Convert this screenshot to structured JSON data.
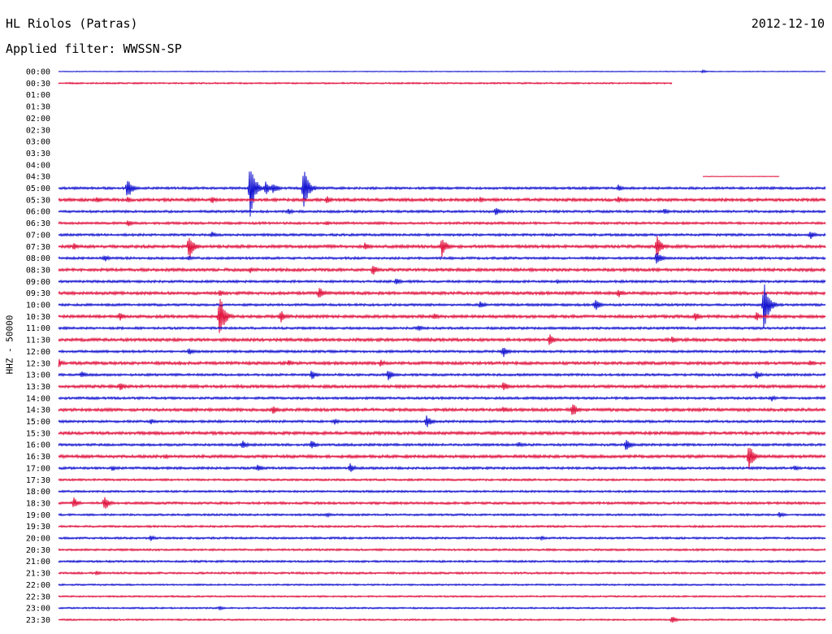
{
  "header": {
    "station": "HL Riolos (Patras)",
    "date": "2012-12-10",
    "filter": "Applied filter: WWSSN-SP"
  },
  "chart_data": {
    "type": "line",
    "title": "HL Riolos (Patras)",
    "subtitle": "Applied filter: WWSSN-SP",
    "ylabel": "HHZ - 50000",
    "colors": {
      "even_row": "#1010d0",
      "odd_row": "#e0103c"
    },
    "rows": [
      {
        "label": "00:00",
        "start": 0,
        "end": 1,
        "noise": 0.4,
        "events": [
          {
            "x": 0.84,
            "a": 2
          }
        ]
      },
      {
        "label": "00:30",
        "start": 0,
        "end": 0.8,
        "noise": 0.8,
        "events": []
      },
      {
        "label": "01:00",
        "start": 0,
        "end": 0,
        "noise": 0,
        "events": []
      },
      {
        "label": "01:30",
        "start": 0,
        "end": 0,
        "noise": 0,
        "events": []
      },
      {
        "label": "02:00",
        "start": 0,
        "end": 0,
        "noise": 0,
        "events": []
      },
      {
        "label": "02:30",
        "start": 0,
        "end": 0,
        "noise": 0,
        "events": []
      },
      {
        "label": "03:00",
        "start": 0,
        "end": 0,
        "noise": 0,
        "events": []
      },
      {
        "label": "03:30",
        "start": 0,
        "end": 0,
        "noise": 0,
        "events": []
      },
      {
        "label": "04:00",
        "start": 0,
        "end": 0,
        "noise": 0,
        "events": []
      },
      {
        "label": "04:30",
        "start": 0.84,
        "end": 0.94,
        "noise": 0.3,
        "events": []
      },
      {
        "label": "05:00",
        "start": 0,
        "end": 1,
        "noise": 1.2,
        "events": [
          {
            "x": 0.09,
            "a": 14
          },
          {
            "x": 0.25,
            "a": 37
          },
          {
            "x": 0.27,
            "a": 10
          },
          {
            "x": 0.28,
            "a": 8
          },
          {
            "x": 0.32,
            "a": 29
          },
          {
            "x": 0.73,
            "a": 5
          }
        ]
      },
      {
        "label": "05:30",
        "start": 0,
        "end": 1,
        "noise": 1.5,
        "events": [
          {
            "x": 0.05,
            "a": 5
          },
          {
            "x": 0.09,
            "a": 4
          },
          {
            "x": 0.2,
            "a": 5
          },
          {
            "x": 0.35,
            "a": 5
          },
          {
            "x": 0.55,
            "a": 4
          },
          {
            "x": 0.73,
            "a": 5
          }
        ]
      },
      {
        "label": "06:00",
        "start": 0,
        "end": 1,
        "noise": 1.2,
        "events": [
          {
            "x": 0.3,
            "a": 4
          },
          {
            "x": 0.57,
            "a": 6
          },
          {
            "x": 0.79,
            "a": 4
          }
        ]
      },
      {
        "label": "06:30",
        "start": 0,
        "end": 1,
        "noise": 1.2,
        "events": [
          {
            "x": 0.09,
            "a": 5
          },
          {
            "x": 0.35,
            "a": 3
          }
        ]
      },
      {
        "label": "07:00",
        "start": 0,
        "end": 1,
        "noise": 1.2,
        "events": [
          {
            "x": 0.2,
            "a": 4
          },
          {
            "x": 0.98,
            "a": 6
          }
        ]
      },
      {
        "label": "07:30",
        "start": 0,
        "end": 1,
        "noise": 1.5,
        "events": [
          {
            "x": 0.02,
            "a": 5
          },
          {
            "x": 0.17,
            "a": 18
          },
          {
            "x": 0.4,
            "a": 6
          },
          {
            "x": 0.5,
            "a": 14
          },
          {
            "x": 0.78,
            "a": 16
          }
        ]
      },
      {
        "label": "08:00",
        "start": 0,
        "end": 1,
        "noise": 1.2,
        "events": [
          {
            "x": 0.06,
            "a": 5
          },
          {
            "x": 0.17,
            "a": 3
          },
          {
            "x": 0.78,
            "a": 10
          }
        ]
      },
      {
        "label": "08:30",
        "start": 0,
        "end": 1,
        "noise": 1.5,
        "events": [
          {
            "x": 0.25,
            "a": 4
          },
          {
            "x": 0.41,
            "a": 8
          }
        ]
      },
      {
        "label": "09:00",
        "start": 0,
        "end": 1,
        "noise": 1.2,
        "events": [
          {
            "x": 0.44,
            "a": 5
          },
          {
            "x": 0.65,
            "a": 3
          }
        ]
      },
      {
        "label": "09:30",
        "start": 0,
        "end": 1,
        "noise": 1.5,
        "events": [
          {
            "x": 0.21,
            "a": 5
          },
          {
            "x": 0.34,
            "a": 9
          },
          {
            "x": 0.73,
            "a": 6
          }
        ]
      },
      {
        "label": "10:00",
        "start": 0,
        "end": 1,
        "noise": 1.2,
        "events": [
          {
            "x": 0.55,
            "a": 6
          },
          {
            "x": 0.7,
            "a": 8
          },
          {
            "x": 0.92,
            "a": 36
          }
        ]
      },
      {
        "label": "10:30",
        "start": 0,
        "end": 1,
        "noise": 1.5,
        "events": [
          {
            "x": 0.08,
            "a": 6
          },
          {
            "x": 0.21,
            "a": 30
          },
          {
            "x": 0.29,
            "a": 8
          },
          {
            "x": 0.49,
            "a": 5
          },
          {
            "x": 0.83,
            "a": 7
          },
          {
            "x": 0.91,
            "a": 6
          }
        ]
      },
      {
        "label": "11:00",
        "start": 0,
        "end": 1,
        "noise": 1.2,
        "events": [
          {
            "x": 0.47,
            "a": 4
          }
        ]
      },
      {
        "label": "11:30",
        "start": 0,
        "end": 1,
        "noise": 1.5,
        "events": [
          {
            "x": 0.64,
            "a": 8
          },
          {
            "x": 0.8,
            "a": 5
          }
        ]
      },
      {
        "label": "12:00",
        "start": 0,
        "end": 1,
        "noise": 1.2,
        "events": [
          {
            "x": 0.17,
            "a": 5
          },
          {
            "x": 0.58,
            "a": 8
          }
        ]
      },
      {
        "label": "12:30",
        "start": 0,
        "end": 1,
        "noise": 1.5,
        "events": [
          {
            "x": 0,
            "a": 6
          },
          {
            "x": 0.3,
            "a": 5
          },
          {
            "x": 0.42,
            "a": 5
          },
          {
            "x": 0.98,
            "a": 5
          }
        ]
      },
      {
        "label": "13:00",
        "start": 0,
        "end": 1,
        "noise": 1.2,
        "events": [
          {
            "x": 0.03,
            "a": 5
          },
          {
            "x": 0.33,
            "a": 7
          },
          {
            "x": 0.43,
            "a": 7
          },
          {
            "x": 0.91,
            "a": 6
          }
        ]
      },
      {
        "label": "13:30",
        "start": 0,
        "end": 1,
        "noise": 1.5,
        "events": [
          {
            "x": 0.08,
            "a": 6
          },
          {
            "x": 0.58,
            "a": 7
          }
        ]
      },
      {
        "label": "14:00",
        "start": 0,
        "end": 1,
        "noise": 1.2,
        "events": [
          {
            "x": 0.93,
            "a": 4
          }
        ]
      },
      {
        "label": "14:30",
        "start": 0,
        "end": 1,
        "noise": 1.5,
        "events": [
          {
            "x": 0.28,
            "a": 6
          },
          {
            "x": 0.58,
            "a": 5
          },
          {
            "x": 0.67,
            "a": 10
          }
        ]
      },
      {
        "label": "15:00",
        "start": 0,
        "end": 1,
        "noise": 1.2,
        "events": [
          {
            "x": 0.12,
            "a": 4
          },
          {
            "x": 0.36,
            "a": 4
          },
          {
            "x": 0.48,
            "a": 9
          }
        ]
      },
      {
        "label": "15:30",
        "start": 0,
        "end": 1,
        "noise": 1.5,
        "events": [
          {
            "x": 0.47,
            "a": 3
          }
        ]
      },
      {
        "label": "16:00",
        "start": 0,
        "end": 1,
        "noise": 1.2,
        "events": [
          {
            "x": 0.24,
            "a": 6
          },
          {
            "x": 0.33,
            "a": 6
          },
          {
            "x": 0.6,
            "a": 4
          },
          {
            "x": 0.74,
            "a": 9
          }
        ]
      },
      {
        "label": "16:30",
        "start": 0,
        "end": 1,
        "noise": 1.5,
        "events": [
          {
            "x": 0.14,
            "a": 3
          },
          {
            "x": 0.9,
            "a": 18
          }
        ]
      },
      {
        "label": "17:00",
        "start": 0,
        "end": 1,
        "noise": 1.2,
        "events": [
          {
            "x": 0.07,
            "a": 4
          },
          {
            "x": 0.26,
            "a": 5
          },
          {
            "x": 0.38,
            "a": 7
          },
          {
            "x": 0.96,
            "a": 4
          }
        ]
      },
      {
        "label": "17:30",
        "start": 0,
        "end": 1,
        "noise": 1.0,
        "events": []
      },
      {
        "label": "18:00",
        "start": 0,
        "end": 1,
        "noise": 1.0,
        "events": []
      },
      {
        "label": "18:30",
        "start": 0,
        "end": 1,
        "noise": 1.2,
        "events": [
          {
            "x": 0.02,
            "a": 7
          },
          {
            "x": 0.06,
            "a": 10
          }
        ]
      },
      {
        "label": "19:00",
        "start": 0,
        "end": 1,
        "noise": 1.0,
        "events": [
          {
            "x": 0.35,
            "a": 3
          },
          {
            "x": 0.94,
            "a": 4
          }
        ]
      },
      {
        "label": "19:30",
        "start": 0,
        "end": 1,
        "noise": 1.0,
        "events": []
      },
      {
        "label": "20:00",
        "start": 0,
        "end": 1,
        "noise": 1.0,
        "events": [
          {
            "x": 0.12,
            "a": 4
          },
          {
            "x": 0.63,
            "a": 3
          }
        ]
      },
      {
        "label": "20:30",
        "start": 0,
        "end": 1,
        "noise": 1.0,
        "events": []
      },
      {
        "label": "21:00",
        "start": 0,
        "end": 1,
        "noise": 1.0,
        "events": []
      },
      {
        "label": "21:30",
        "start": 0,
        "end": 1,
        "noise": 1.0,
        "events": [
          {
            "x": 0.05,
            "a": 3
          }
        ]
      },
      {
        "label": "22:00",
        "start": 0,
        "end": 1,
        "noise": 0.8,
        "events": []
      },
      {
        "label": "22:30",
        "start": 0,
        "end": 1,
        "noise": 0.8,
        "events": []
      },
      {
        "label": "23:00",
        "start": 0,
        "end": 1,
        "noise": 0.8,
        "events": [
          {
            "x": 0.21,
            "a": 3
          }
        ]
      },
      {
        "label": "23:30",
        "start": 0,
        "end": 1,
        "noise": 0.8,
        "events": [
          {
            "x": 0.8,
            "a": 5
          }
        ]
      }
    ]
  }
}
